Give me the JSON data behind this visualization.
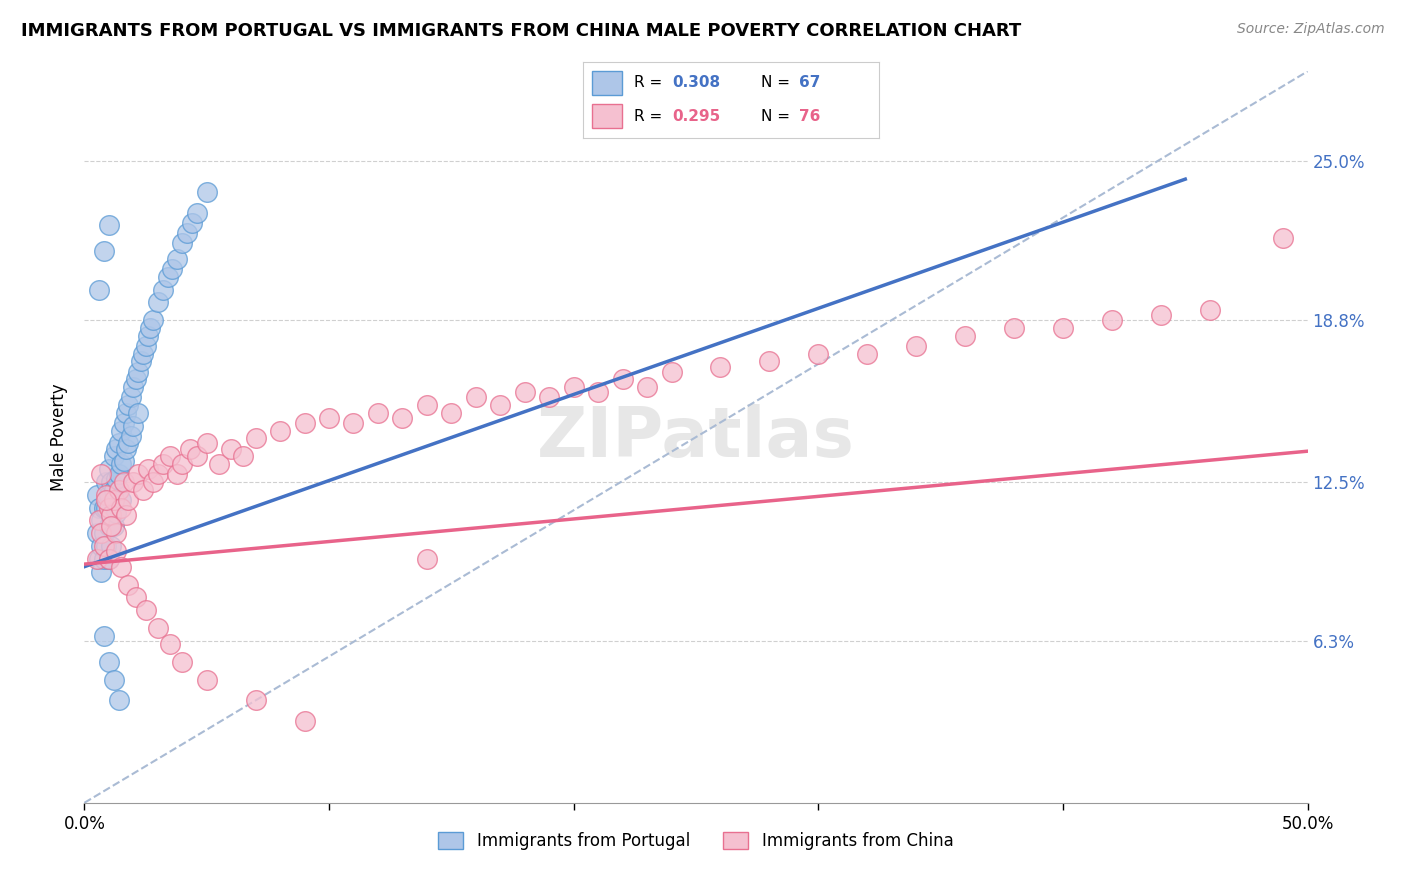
{
  "title": "IMMIGRANTS FROM PORTUGAL VS IMMIGRANTS FROM CHINA MALE POVERTY CORRELATION CHART",
  "source": "Source: ZipAtlas.com",
  "ylabel": "Male Poverty",
  "xlim": [
    0,
    0.5
  ],
  "ylim": [
    0.0,
    0.285
  ],
  "yticks": [
    0.063,
    0.125,
    0.188,
    0.25
  ],
  "ytick_labels": [
    "6.3%",
    "12.5%",
    "18.8%",
    "25.0%"
  ],
  "xtick_labels_left": "0.0%",
  "xtick_labels_right": "50.0%",
  "portugal_color": "#aec6e8",
  "portugal_edge_color": "#5b9bd5",
  "china_color": "#f5c0d0",
  "china_edge_color": "#e87090",
  "portugal_R": 0.308,
  "portugal_N": 67,
  "china_R": 0.295,
  "china_N": 76,
  "portugal_line_color": "#4472c4",
  "china_line_color": "#e8638a",
  "ref_line_color": "#aabbd4",
  "legend_R_portugal_color": "#4472c4",
  "legend_R_china_color": "#e8638a",
  "legend_N_portugal_color": "#4472c4",
  "legend_N_china_color": "#e8638a",
  "portugal_line_x": [
    0.0,
    0.45
  ],
  "portugal_line_y": [
    0.092,
    0.243
  ],
  "china_line_x": [
    0.0,
    0.5
  ],
  "china_line_y": [
    0.093,
    0.137
  ],
  "ref_line_x": [
    0.0,
    0.5
  ],
  "ref_line_y": [
    0.0,
    0.285
  ],
  "portugal_scatter_x": [
    0.005,
    0.005,
    0.006,
    0.006,
    0.007,
    0.007,
    0.007,
    0.008,
    0.008,
    0.008,
    0.009,
    0.009,
    0.009,
    0.01,
    0.01,
    0.01,
    0.01,
    0.011,
    0.011,
    0.011,
    0.012,
    0.012,
    0.012,
    0.013,
    0.013,
    0.013,
    0.014,
    0.014,
    0.015,
    0.015,
    0.015,
    0.016,
    0.016,
    0.017,
    0.017,
    0.018,
    0.018,
    0.019,
    0.019,
    0.02,
    0.02,
    0.021,
    0.022,
    0.022,
    0.023,
    0.024,
    0.025,
    0.026,
    0.027,
    0.028,
    0.03,
    0.032,
    0.034,
    0.036,
    0.038,
    0.04,
    0.042,
    0.044,
    0.046,
    0.05,
    0.008,
    0.01,
    0.012,
    0.014,
    0.006,
    0.008,
    0.01
  ],
  "portugal_scatter_y": [
    0.105,
    0.12,
    0.115,
    0.095,
    0.11,
    0.1,
    0.09,
    0.115,
    0.105,
    0.095,
    0.125,
    0.115,
    0.1,
    0.13,
    0.12,
    0.108,
    0.095,
    0.125,
    0.112,
    0.1,
    0.135,
    0.122,
    0.108,
    0.138,
    0.126,
    0.113,
    0.14,
    0.128,
    0.145,
    0.132,
    0.118,
    0.148,
    0.133,
    0.152,
    0.138,
    0.155,
    0.14,
    0.158,
    0.143,
    0.162,
    0.147,
    0.165,
    0.168,
    0.152,
    0.172,
    0.175,
    0.178,
    0.182,
    0.185,
    0.188,
    0.195,
    0.2,
    0.205,
    0.208,
    0.212,
    0.218,
    0.222,
    0.226,
    0.23,
    0.238,
    0.065,
    0.055,
    0.048,
    0.04,
    0.2,
    0.215,
    0.225
  ],
  "china_scatter_x": [
    0.005,
    0.006,
    0.007,
    0.008,
    0.009,
    0.01,
    0.01,
    0.011,
    0.012,
    0.013,
    0.014,
    0.015,
    0.016,
    0.017,
    0.018,
    0.02,
    0.022,
    0.024,
    0.026,
    0.028,
    0.03,
    0.032,
    0.035,
    0.038,
    0.04,
    0.043,
    0.046,
    0.05,
    0.055,
    0.06,
    0.065,
    0.07,
    0.08,
    0.09,
    0.1,
    0.11,
    0.12,
    0.13,
    0.14,
    0.15,
    0.16,
    0.17,
    0.18,
    0.19,
    0.2,
    0.21,
    0.22,
    0.23,
    0.24,
    0.26,
    0.28,
    0.3,
    0.32,
    0.34,
    0.36,
    0.38,
    0.4,
    0.42,
    0.44,
    0.46,
    0.007,
    0.009,
    0.011,
    0.013,
    0.015,
    0.018,
    0.021,
    0.025,
    0.03,
    0.035,
    0.04,
    0.05,
    0.07,
    0.09,
    0.14,
    0.49
  ],
  "china_scatter_y": [
    0.095,
    0.11,
    0.105,
    0.1,
    0.12,
    0.115,
    0.095,
    0.112,
    0.118,
    0.105,
    0.122,
    0.115,
    0.125,
    0.112,
    0.118,
    0.125,
    0.128,
    0.122,
    0.13,
    0.125,
    0.128,
    0.132,
    0.135,
    0.128,
    0.132,
    0.138,
    0.135,
    0.14,
    0.132,
    0.138,
    0.135,
    0.142,
    0.145,
    0.148,
    0.15,
    0.148,
    0.152,
    0.15,
    0.155,
    0.152,
    0.158,
    0.155,
    0.16,
    0.158,
    0.162,
    0.16,
    0.165,
    0.162,
    0.168,
    0.17,
    0.172,
    0.175,
    0.175,
    0.178,
    0.182,
    0.185,
    0.185,
    0.188,
    0.19,
    0.192,
    0.128,
    0.118,
    0.108,
    0.098,
    0.092,
    0.085,
    0.08,
    0.075,
    0.068,
    0.062,
    0.055,
    0.048,
    0.04,
    0.032,
    0.095,
    0.22
  ]
}
